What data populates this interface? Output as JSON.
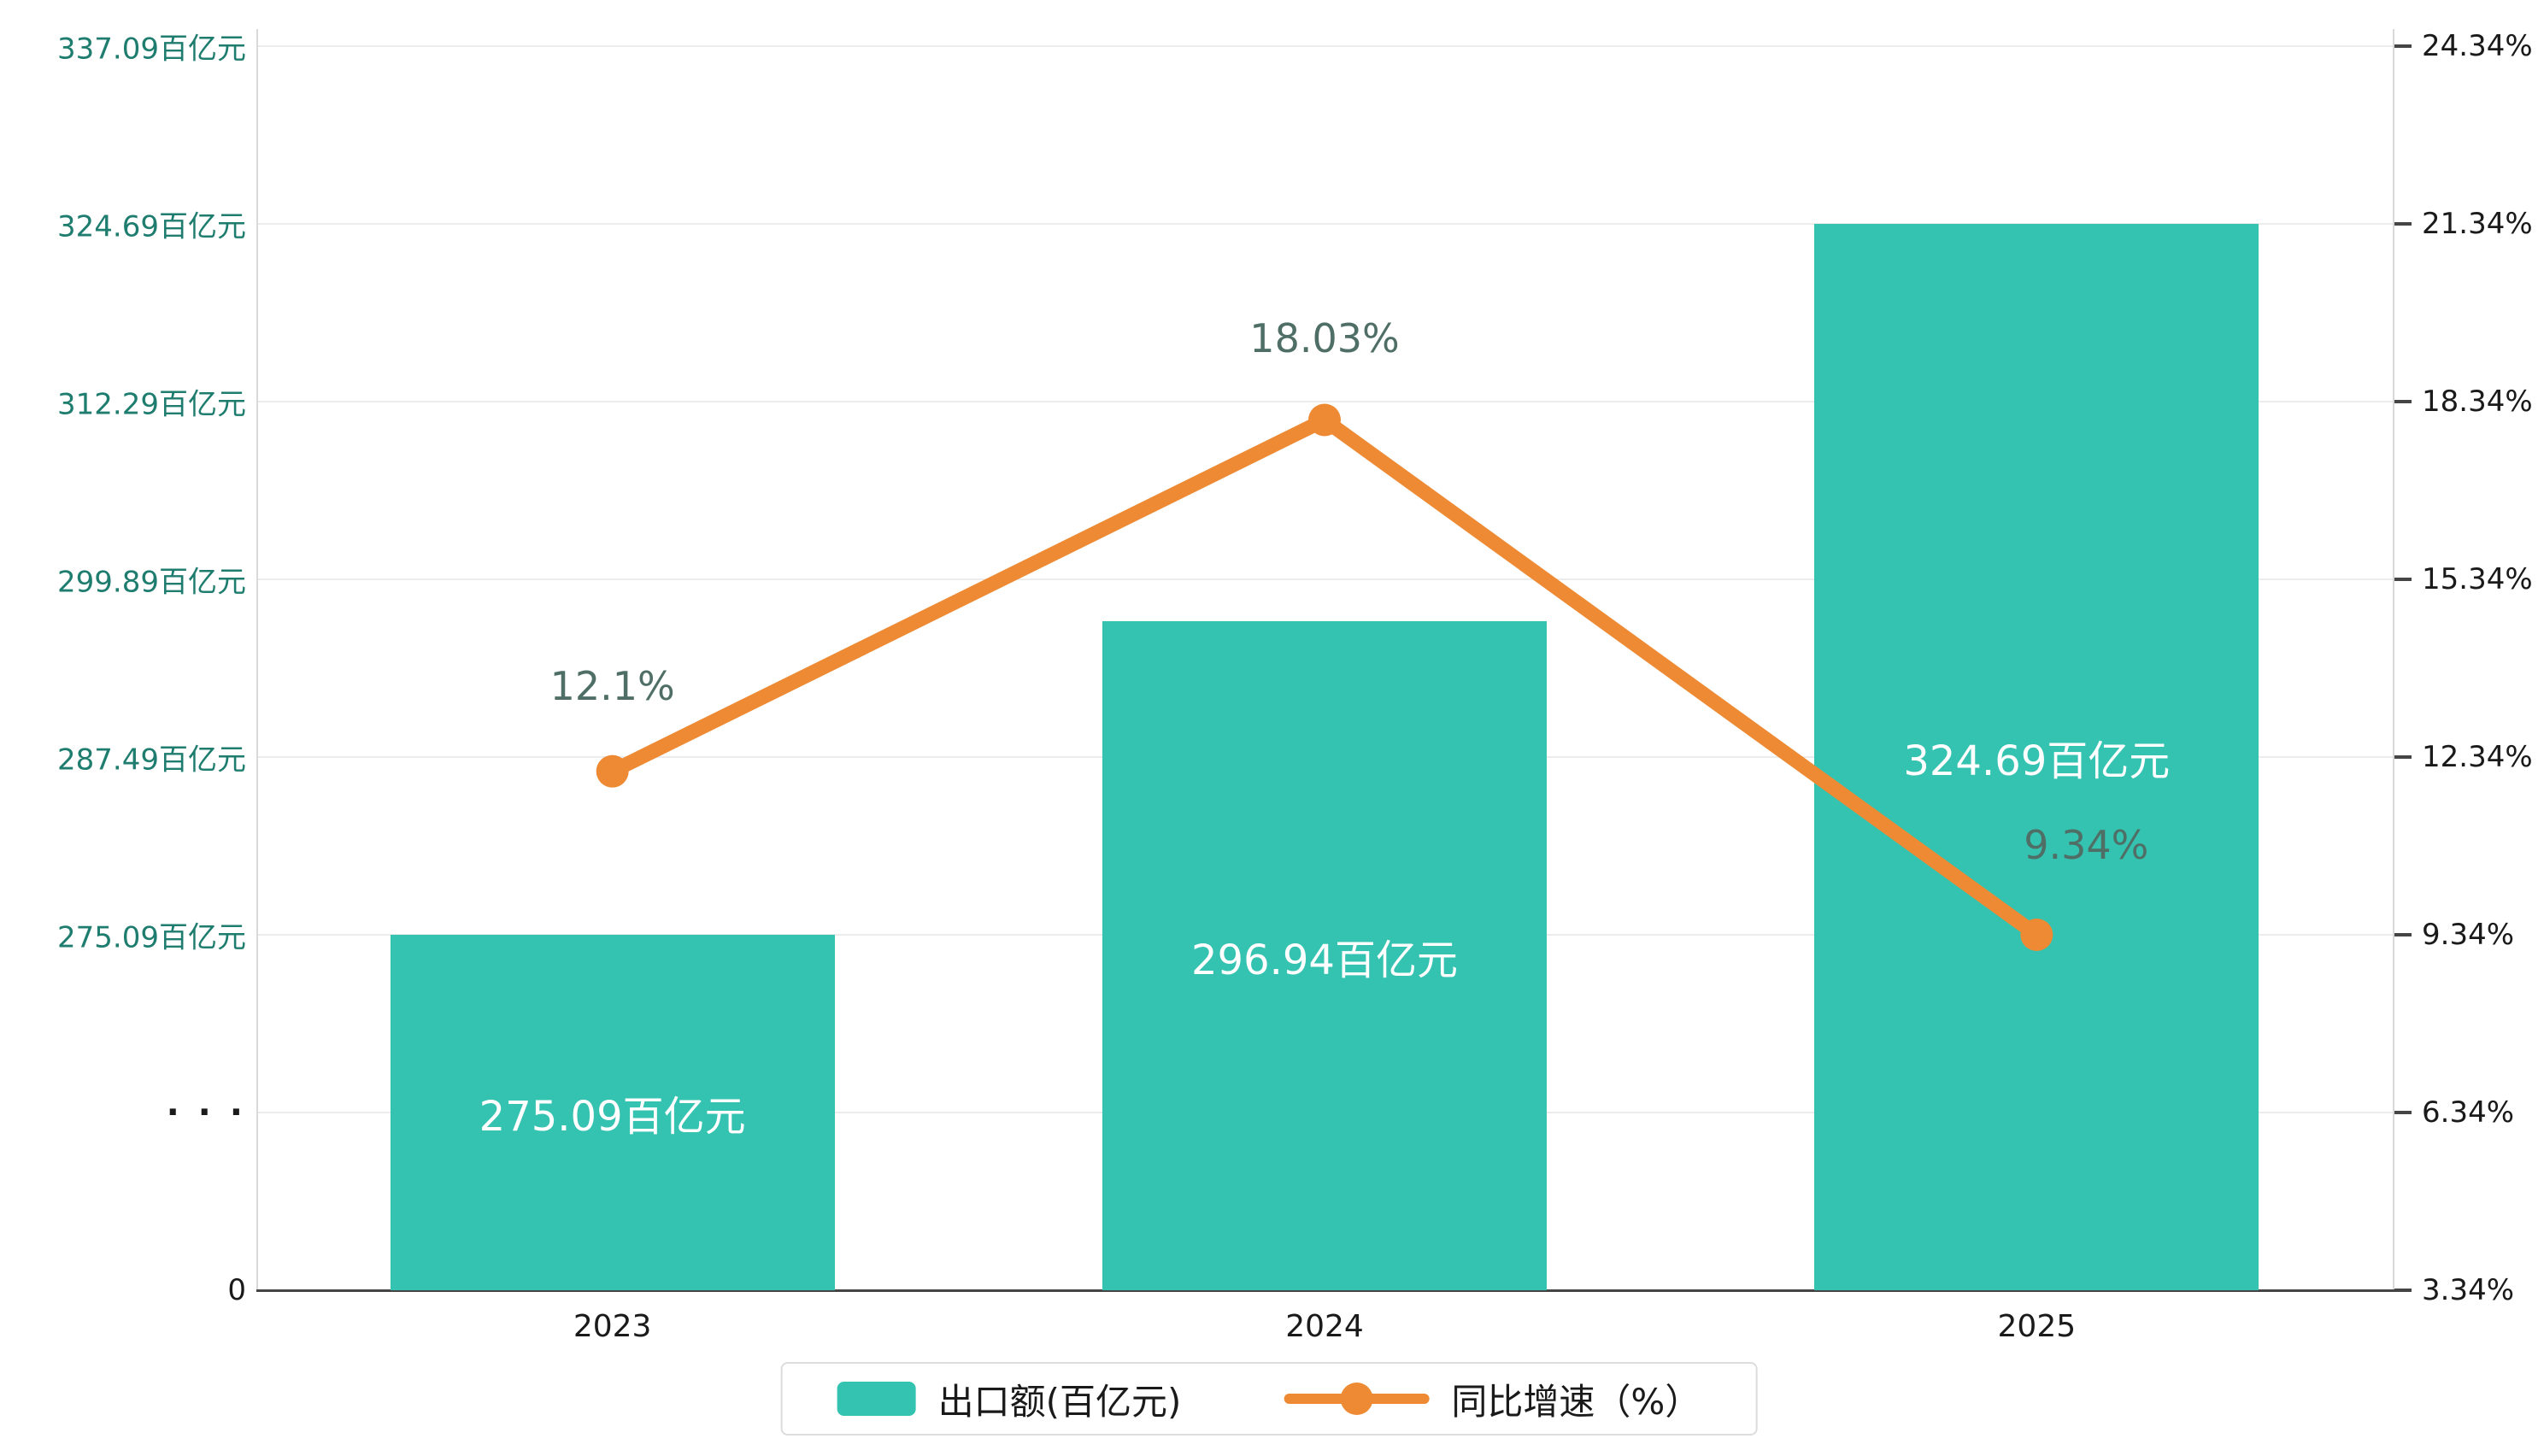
{
  "chart_data": {
    "type": "bar+line",
    "categories": [
      "2023",
      "2024",
      "2025"
    ],
    "series": [
      {
        "name": "出口额(百亿元)",
        "type": "bar",
        "axis": "left",
        "values": [
          275.09,
          296.94,
          324.69
        ],
        "data_labels": [
          "275.09百亿元",
          "296.94百亿元",
          "324.69百亿元"
        ]
      },
      {
        "name": "同比增速（%）",
        "type": "line",
        "axis": "right",
        "values": [
          12.1,
          18.03,
          9.34
        ],
        "data_labels": [
          "12.1%",
          "18.03%",
          "9.34%"
        ]
      }
    ],
    "axes": {
      "left": {
        "has_break": true,
        "ticks": [
          {
            "label": "337.09百亿元",
            "value": 337.09
          },
          {
            "label": "324.69百亿元",
            "value": 324.69
          },
          {
            "label": "312.29百亿元",
            "value": 312.29
          },
          {
            "label": "299.89百亿元",
            "value": 299.89
          },
          {
            "label": "287.49百亿元",
            "value": 287.49
          },
          {
            "label": "275.09百亿元",
            "value": 275.09
          },
          {
            "label": "· · ·",
            "value": null
          },
          {
            "label": "0",
            "value": 0
          }
        ]
      },
      "right": {
        "ticks": [
          {
            "label": "24.34%",
            "value": 24.34
          },
          {
            "label": "21.34%",
            "value": 21.34
          },
          {
            "label": "18.34%",
            "value": 18.34
          },
          {
            "label": "15.34%",
            "value": 15.34
          },
          {
            "label": "12.34%",
            "value": 12.34
          },
          {
            "label": "9.34%",
            "value": 9.34
          },
          {
            "label": "6.34%",
            "value": 6.34
          },
          {
            "label": "3.34%",
            "value": 3.34
          }
        ]
      }
    },
    "legend_position": "bottom-center",
    "grid": true,
    "colors": {
      "bar": "#35C3B1",
      "line": "#ED8A33",
      "left_tick_label": "#1F7D6F",
      "axis_text": "#1A1A1A",
      "point_label": "#4F6F66",
      "grid_line": "#ECECEC",
      "axis_line": "#454545",
      "bar_label": "#FFFFFF"
    }
  }
}
